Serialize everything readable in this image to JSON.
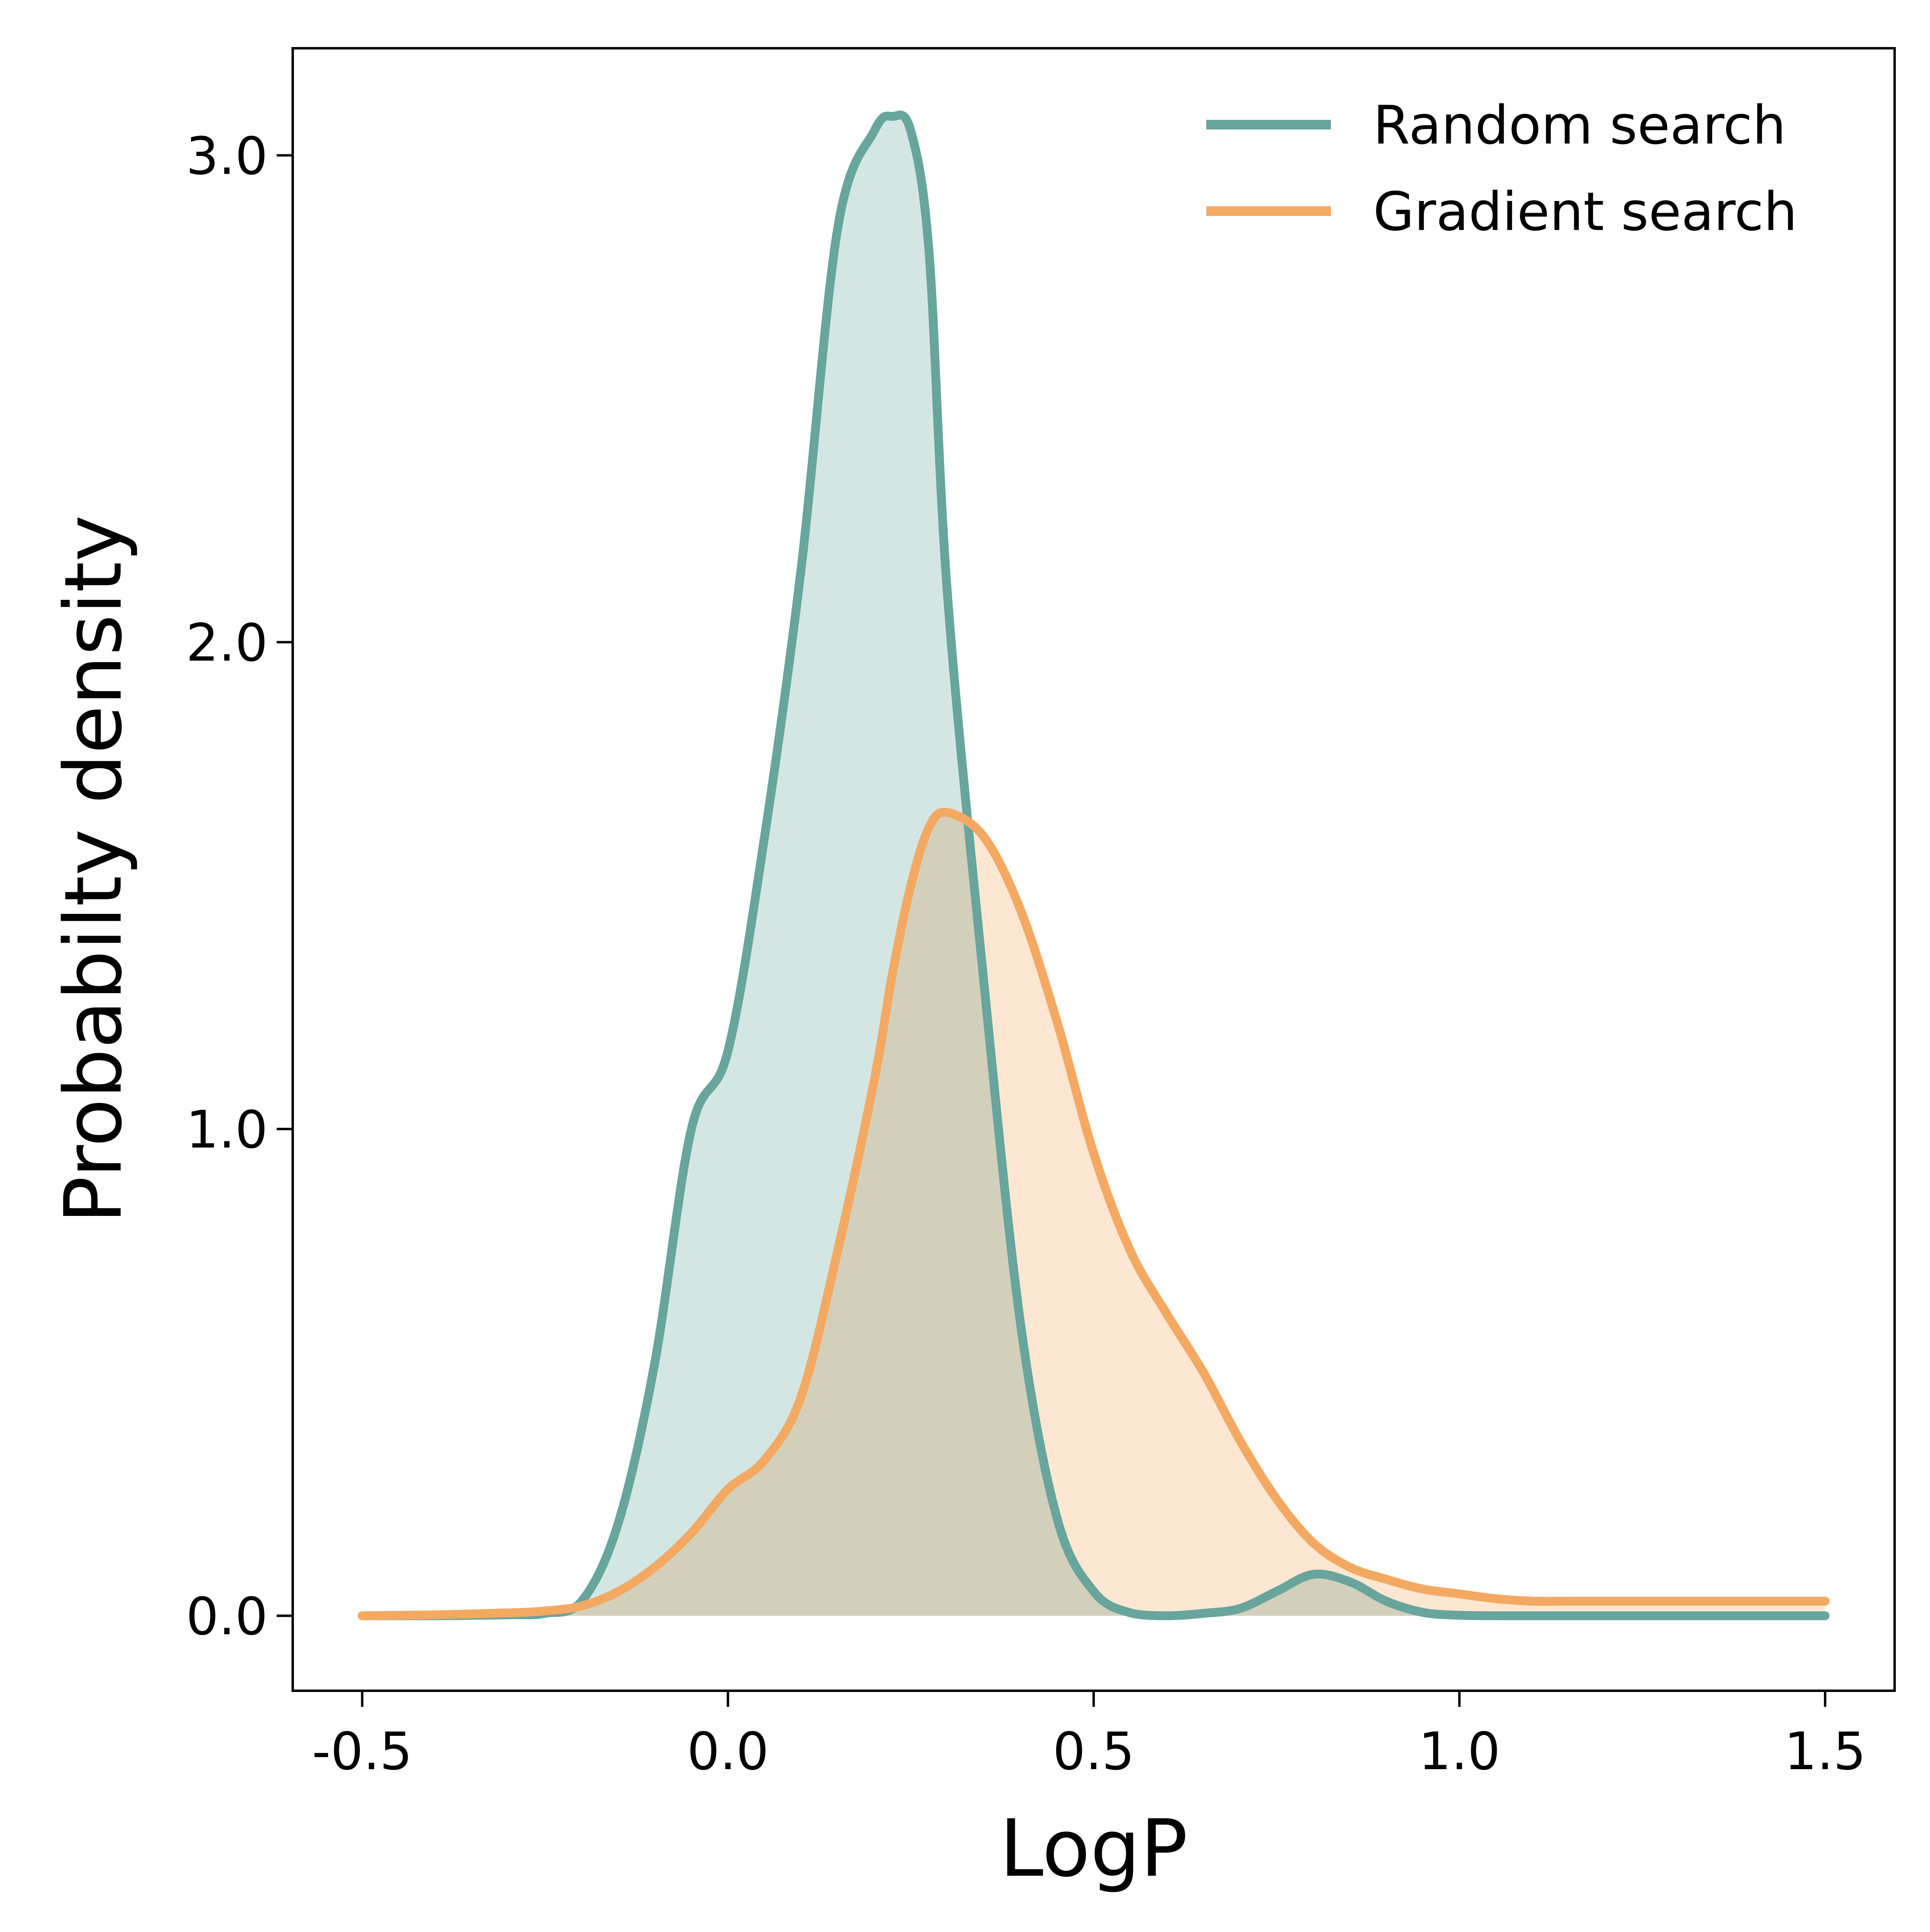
{
  "chart_data": {
    "type": "area",
    "xlabel": "LogP",
    "ylabel": "Probabilty density",
    "xlim": [
      -0.595,
      1.595
    ],
    "ylim": [
      -0.154,
      3.22
    ],
    "xticks": [
      -0.5,
      0.0,
      0.5,
      1.0,
      1.5
    ],
    "xtick_labels": [
      "-0.5",
      "0.0",
      "0.5",
      "1.0",
      "1.5"
    ],
    "yticks": [
      0.0,
      1.0,
      2.0,
      3.0
    ],
    "ytick_labels": [
      "0.0",
      "1.0",
      "2.0",
      "3.0"
    ],
    "grid": false,
    "legend_position": "top-right",
    "x": [
      -0.5,
      -0.4,
      -0.3,
      -0.25,
      -0.2,
      -0.15,
      -0.1,
      -0.05,
      0.0,
      0.05,
      0.1,
      0.15,
      0.2,
      0.225,
      0.25,
      0.275,
      0.3,
      0.35,
      0.4,
      0.45,
      0.5,
      0.55,
      0.6,
      0.65,
      0.7,
      0.75,
      0.8,
      0.85,
      0.9,
      0.95,
      1.0,
      1.05,
      1.1,
      1.15,
      1.2,
      1.25,
      1.3,
      1.35,
      1.4,
      1.45,
      1.5
    ],
    "series": [
      {
        "name": "Random search",
        "color": "#67A59D",
        "fill": "#CFE3E0",
        "values": [
          0.0,
          0.0,
          0.002,
          0.005,
          0.03,
          0.19,
          0.52,
          1.0,
          1.16,
          1.6,
          2.15,
          2.85,
          3.05,
          3.08,
          3.05,
          2.8,
          2.1,
          1.3,
          0.6,
          0.2,
          0.05,
          0.006,
          0.0,
          0.005,
          0.015,
          0.05,
          0.085,
          0.07,
          0.03,
          0.007,
          0.001,
          0.0,
          0.0,
          0.0,
          0.0,
          0.0,
          0.0,
          0.0,
          0.0,
          0.0,
          0.0
        ]
      },
      {
        "name": "Gradient search",
        "color": "#F4A962",
        "fill": "#FDE4CD",
        "values": [
          0.0,
          0.002,
          0.006,
          0.01,
          0.02,
          0.05,
          0.1,
          0.17,
          0.26,
          0.32,
          0.45,
          0.75,
          1.1,
          1.32,
          1.5,
          1.62,
          1.65,
          1.6,
          1.45,
          1.22,
          0.95,
          0.75,
          0.62,
          0.5,
          0.36,
          0.24,
          0.15,
          0.1,
          0.075,
          0.055,
          0.045,
          0.035,
          0.03,
          0.03,
          0.03,
          0.03,
          0.03,
          0.03,
          0.03,
          0.03,
          0.03
        ]
      }
    ]
  }
}
